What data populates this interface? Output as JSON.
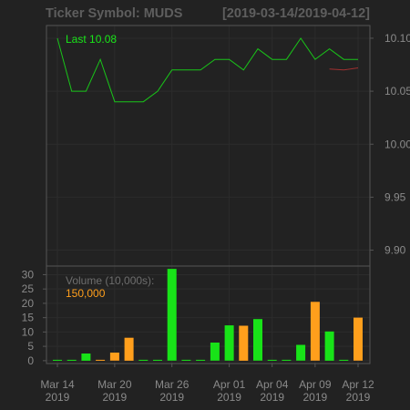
{
  "header": {
    "title": "Ticker Symbol: MUDS",
    "date_range": "[2019-03-14/2019-04-12]"
  },
  "legend": {
    "last_label": "Last 10.08",
    "volume_label": "Volume (10,000s):",
    "volume_value": "150,000"
  },
  "colors": {
    "background": "#222222",
    "price_line": "#19c519",
    "volume_up": "#18e318",
    "volume_down": "#ff9f1c",
    "ma_line": "#a03030",
    "grid": "#2c2c2c",
    "frame": "#555555",
    "text": "#8a8a8a"
  },
  "chart_data": [
    {
      "type": "line",
      "title": "Ticker Symbol: MUDS",
      "subtitle": "[2019-03-14/2019-04-12]",
      "series": [
        {
          "name": "Last",
          "values": [
            10.1,
            10.05,
            10.05,
            10.08,
            10.04,
            10.04,
            10.04,
            10.05,
            10.07,
            10.07,
            10.07,
            10.08,
            10.08,
            10.07,
            10.09,
            10.08,
            10.08,
            10.1,
            10.08,
            10.09,
            10.08,
            10.08
          ]
        },
        {
          "values": [
            null,
            null,
            null,
            null,
            null,
            null,
            null,
            null,
            null,
            null,
            null,
            null,
            null,
            null,
            null,
            null,
            null,
            null,
            null,
            10.071,
            10.07,
            10.072
          ]
        }
      ],
      "ylim": [
        9.885,
        10.112
      ],
      "yticks": [
        "10.10",
        "10.05",
        "10.00",
        "9.95",
        "9.90"
      ],
      "ytick_values": [
        10.1,
        10.05,
        10.0,
        9.95,
        9.9
      ],
      "grid": true
    },
    {
      "type": "bar",
      "series": [
        {
          "values": [
            0.1,
            0.1,
            2.5,
            0.1,
            2.8,
            8.0,
            0.1,
            0.1,
            32.0,
            0.1,
            0.1,
            6.3,
            12.3,
            12.2,
            14.5,
            0.1,
            0.1,
            5.5,
            20.5,
            10.2,
            0.1,
            15.0
          ],
          "directions": [
            "up",
            "up",
            "up",
            "down",
            "down",
            "down",
            "up",
            "up",
            "up",
            "up",
            "up",
            "up",
            "up",
            "down",
            "up",
            "up",
            "up",
            "up",
            "down",
            "up",
            "up",
            "down"
          ]
        }
      ],
      "ylim": [
        -1,
        33
      ],
      "yticks": [
        "30",
        "25",
        "20",
        "15",
        "10",
        "5",
        "0"
      ],
      "ytick_values": [
        30,
        25,
        20,
        15,
        10,
        5,
        0
      ],
      "xticks": [
        {
          "line1": "Mar 14",
          "line2": "2019",
          "index": 0
        },
        {
          "line1": "Mar 20",
          "line2": "2019",
          "index": 4
        },
        {
          "line1": "Mar 26",
          "line2": "2019",
          "index": 8
        },
        {
          "line1": "Apr 01",
          "line2": "2019",
          "index": 12
        },
        {
          "line1": "Apr 04",
          "line2": "2019",
          "index": 15
        },
        {
          "line1": "Apr 09",
          "line2": "2019",
          "index": 18
        },
        {
          "line1": "Apr 12",
          "line2": "2019",
          "index": 21
        }
      ],
      "grid": true
    }
  ]
}
